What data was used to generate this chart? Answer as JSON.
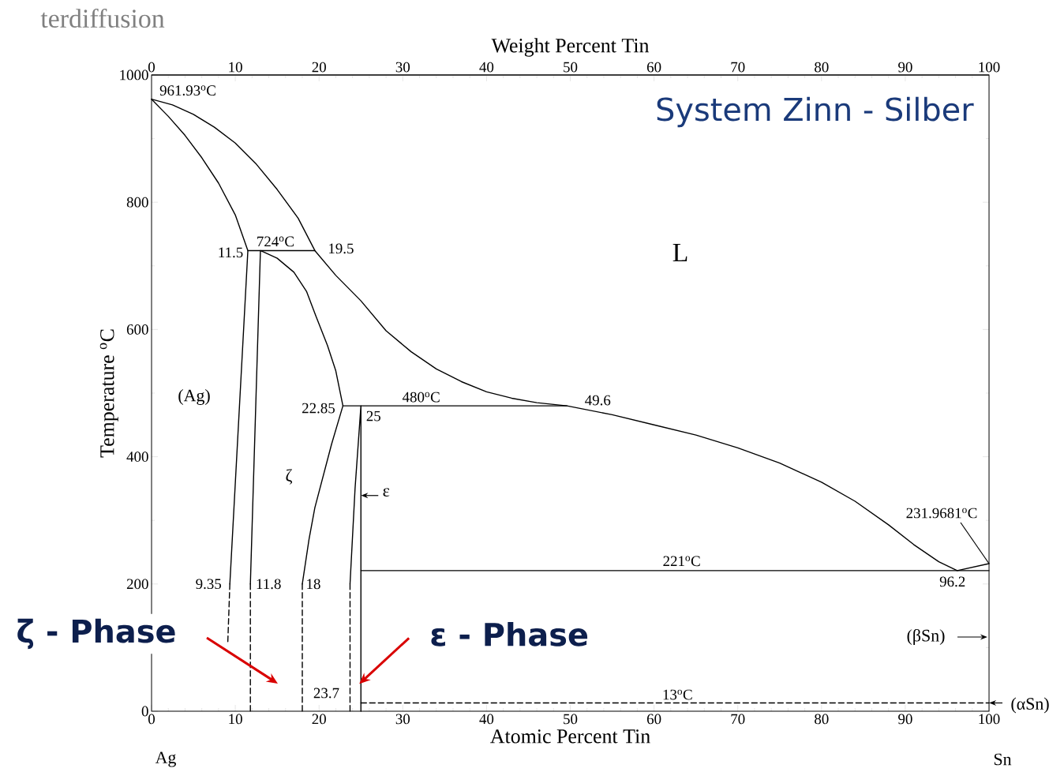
{
  "chart_data": {
    "type": "line",
    "title": "System Zinn - Silber",
    "xlabel": "Atomic Percent Tin",
    "x2label": "Weight Percent Tin",
    "ylabel": "Temperature $^{o}$C",
    "xlim": [
      0,
      100
    ],
    "ylim": [
      0,
      1000
    ],
    "xticks": [
      0,
      10,
      20,
      30,
      40,
      50,
      60,
      70,
      80,
      90,
      100
    ],
    "yticks": [
      0,
      200,
      400,
      600,
      800,
      1000
    ],
    "x2lim": [
      0,
      100
    ],
    "x2ticks": [
      0,
      10,
      20,
      30,
      40,
      50,
      60,
      70,
      80,
      90,
      100
    ],
    "series": [
      {
        "color": "#000000",
        "x": [
          0,
          2.5,
          5,
          7.5,
          10,
          12.5,
          15,
          17.5,
          19.5,
          22,
          25,
          28,
          31,
          34,
          37,
          40,
          43,
          46,
          49.6,
          55,
          60,
          65,
          70,
          75,
          80,
          84,
          88,
          91,
          94,
          96.2,
          100
        ],
        "values": [
          961.93,
          953,
          938,
          918,
          893,
          860,
          820,
          775,
          724,
          685,
          645,
          598,
          565,
          538,
          518,
          502,
          492,
          485,
          480,
          466,
          450,
          434,
          414,
          390,
          360,
          330,
          293,
          262,
          235,
          221,
          231.97
        ]
      },
      {
        "color": "#000000",
        "x": [
          0,
          2,
          4,
          6,
          8,
          10,
          11.5,
          9.35
        ],
        "values": [
          961.93,
          935,
          905,
          870,
          830,
          780,
          724,
          200
        ]
      },
      {
        "color": "#000000",
        "x": [
          9.35,
          9.1
        ],
        "values": [
          200,
          107
        ],
        "line_style": "dashed"
      },
      {
        "color": "#000000",
        "x": [
          11.5,
          19.5
        ],
        "values": [
          724,
          724
        ]
      },
      {
        "color": "#000000",
        "x": [
          11.8,
          13,
          15,
          17,
          18.5,
          19.6,
          21,
          22,
          22.85,
          21.5,
          20.5,
          19.5,
          18.8,
          18
        ],
        "values": [
          200,
          724,
          712,
          690,
          660,
          622,
          575,
          535,
          480,
          420,
          370,
          320,
          270,
          200
        ]
      },
      {
        "color": "#000000",
        "x": [
          11.8,
          11.8
        ],
        "values": [
          200,
          0
        ],
        "line_style": "dashed"
      },
      {
        "color": "#000000",
        "x": [
          18,
          18
        ],
        "values": [
          200,
          0
        ],
        "line_style": "dashed"
      },
      {
        "color": "#000000",
        "x": [
          22.85,
          49.6
        ],
        "values": [
          480,
          480
        ]
      },
      {
        "color": "#000000",
        "x": [
          23.7,
          24.3,
          25,
          25
        ],
        "values": [
          200,
          350,
          480,
          0
        ]
      },
      {
        "color": "#000000",
        "x": [
          23.7,
          23.7
        ],
        "values": [
          200,
          0
        ],
        "line_style": "dashed"
      },
      {
        "color": "#000000",
        "x": [
          25,
          100
        ],
        "values": [
          221,
          221
        ]
      },
      {
        "color": "#000000",
        "x": [
          25,
          100
        ],
        "values": [
          13,
          13
        ],
        "line_style": "dashed"
      }
    ],
    "annotations": [
      {
        "text": "961.93$^{o}$C",
        "x": 0,
        "y": 961.93
      },
      {
        "text": "11.5",
        "x": 11.5,
        "y": 724
      },
      {
        "text": "724$^{o}$C",
        "x": 13,
        "y": 724
      },
      {
        "text": "19.5",
        "x": 19.5,
        "y": 724
      },
      "L",
      "(Ag)",
      {
        "text": "22.85",
        "x": 22.85,
        "y": 480
      },
      {
        "text": "25",
        "x": 25,
        "y": 480
      },
      {
        "text": "480$^{o}$C",
        "x": 32.2,
        "y": 480
      },
      {
        "text": "49.6",
        "x": 49.6,
        "y": 480
      },
      "ζ",
      {
        "text": "ε",
        "x": 25,
        "y": 339
      },
      {
        "text": "231.9681$^{o}$C",
        "x": 100,
        "y": 231.97
      },
      {
        "text": "221$^{o}$C",
        "x": 63.3,
        "y": 221
      },
      {
        "text": "96.2",
        "x": 96.2,
        "y": 221
      },
      {
        "text": "9.35",
        "x": 9.35,
        "y": 200
      },
      {
        "text": "11.8",
        "x": 11.8,
        "y": 200
      },
      {
        "text": "18",
        "x": 18,
        "y": 200
      },
      {
        "text": "23.7",
        "x": 23.7,
        "y": 0
      },
      {
        "text": "13$^{o}$C",
        "x": 62.8,
        "y": 13
      },
      "(βSn)",
      {
        "text": "(αSn)",
        "x": 100,
        "y": 13
      },
      "ζ - Phase",
      {
        "text": "ε - Phase",
        "x": 24.8,
        "y": 43
      },
      "Ag",
      "Sn",
      "terdiffusion"
    ]
  }
}
